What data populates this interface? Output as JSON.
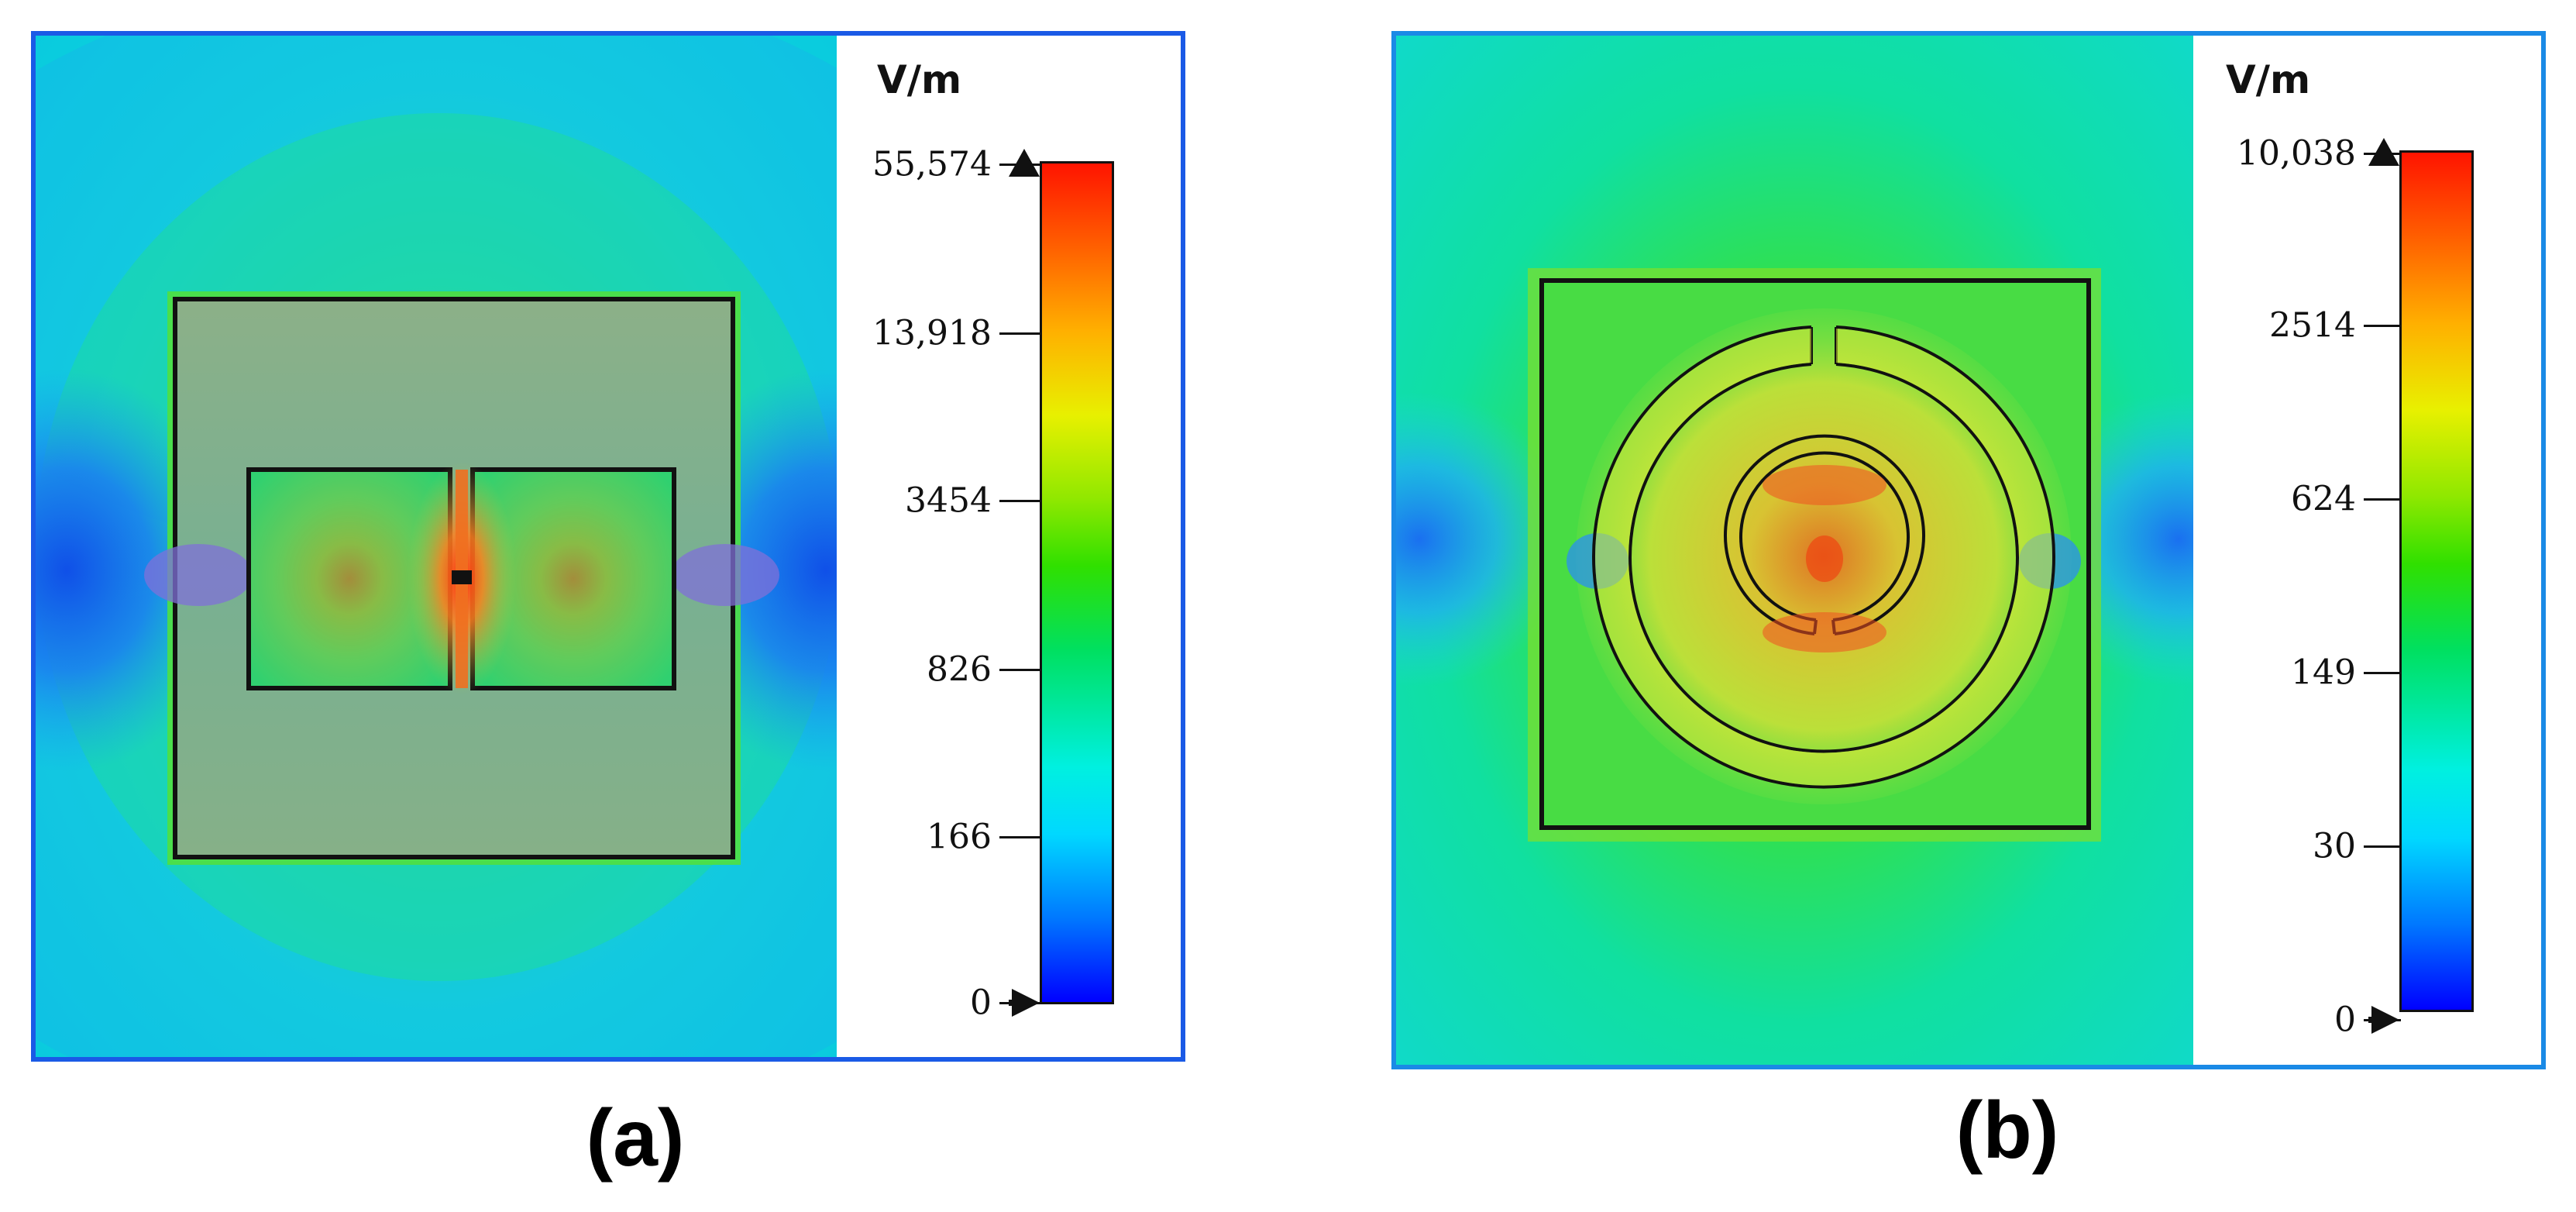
{
  "panels": [
    {
      "caption": "(a)",
      "legend": {
        "unit": "V/m",
        "ticks": [
          "55,574",
          "13,918",
          "3454",
          "826",
          "166",
          "0"
        ]
      }
    },
    {
      "caption": "(b)",
      "legend": {
        "unit": "V/m",
        "ticks": [
          "10,038",
          "2514",
          "624",
          "149",
          "30",
          "0"
        ]
      }
    }
  ],
  "colors": {
    "frame_border": "#1a5ae6",
    "colorbar_low": "#0000ff",
    "colorbar_high": "#ff1400",
    "outline": "#111111"
  }
}
